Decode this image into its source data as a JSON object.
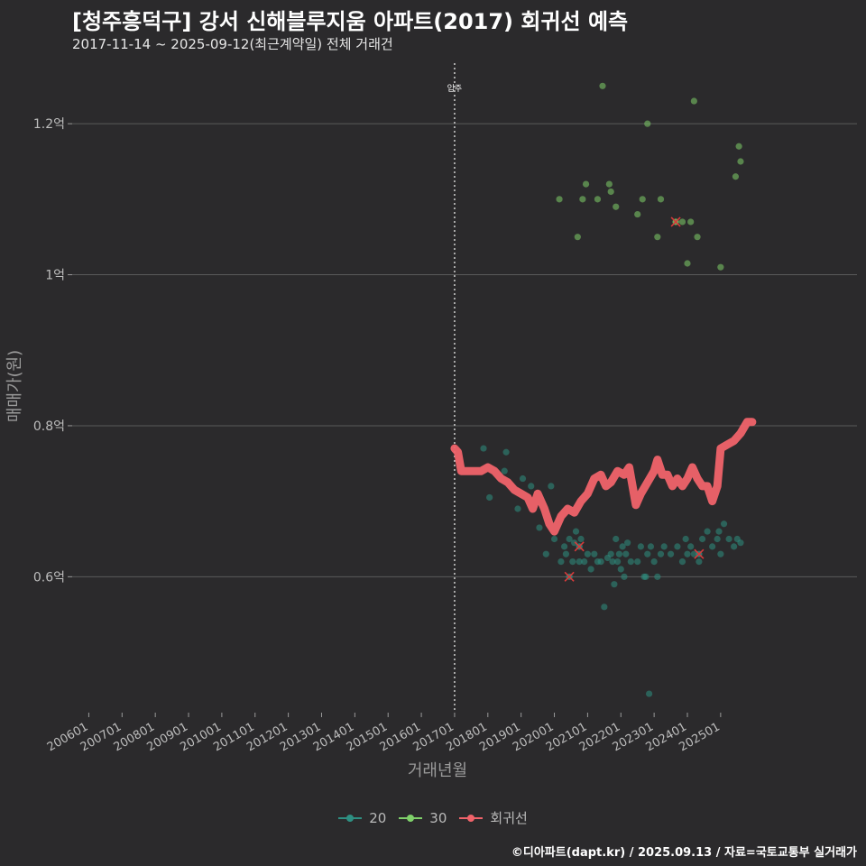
{
  "header": {
    "title": "[청주흥덕구] 강서 신해블루지움 아파트(2017) 회귀선 예측",
    "subtitle": "2017-11-14 ~ 2025-09-12(최근계약일) 전체 거래건"
  },
  "footer": {
    "caption": "©디아파트(dapt.kr) / 2025.09.13 / 자료=국토교통부 실거래가"
  },
  "colors": {
    "background": "#2b2a2c",
    "grid": "#5a5a5a",
    "series_20": "#2e8f82",
    "series_30": "#7fd06a",
    "regression": "#f0636a",
    "vline": "#cfcfcf"
  },
  "chart_data": {
    "type": "scatter",
    "title": "[청주흥덕구] 강서 신해블루지움 아파트(2017) 회귀선 예측",
    "xlabel": "거래년월",
    "ylabel": "매매가(원)",
    "xlim": [
      2005.5,
      2029.1
    ],
    "ylim": [
      0.42,
      1.285
    ],
    "y_unit": "억",
    "x_ticks": [
      {
        "value": 2006.0,
        "label": "200601"
      },
      {
        "value": 2007.0,
        "label": "200701"
      },
      {
        "value": 2008.0,
        "label": "200801"
      },
      {
        "value": 2009.0,
        "label": "200901"
      },
      {
        "value": 2010.0,
        "label": "201001"
      },
      {
        "value": 2011.0,
        "label": "201101"
      },
      {
        "value": 2012.0,
        "label": "201201"
      },
      {
        "value": 2013.0,
        "label": "201301"
      },
      {
        "value": 2014.0,
        "label": "201401"
      },
      {
        "value": 2015.0,
        "label": "201501"
      },
      {
        "value": 2016.0,
        "label": "201601"
      },
      {
        "value": 2017.0,
        "label": "201701"
      },
      {
        "value": 2018.0,
        "label": "201801"
      },
      {
        "value": 2019.0,
        "label": "201901"
      },
      {
        "value": 2020.0,
        "label": "202001"
      },
      {
        "value": 2021.0,
        "label": "202101"
      },
      {
        "value": 2022.0,
        "label": "202201"
      },
      {
        "value": 2023.0,
        "label": "202301"
      },
      {
        "value": 2024.0,
        "label": "202401"
      },
      {
        "value": 2025.0,
        "label": "202501"
      }
    ],
    "y_ticks": [
      {
        "value": 0.6,
        "label": "0.6억"
      },
      {
        "value": 0.8,
        "label": "0.8억"
      },
      {
        "value": 1.0,
        "label": "1억"
      },
      {
        "value": 1.2,
        "label": "1.2억"
      }
    ],
    "vline": {
      "x": 2017.0,
      "label": "입주"
    },
    "legend": [
      {
        "key": "20",
        "label": "20"
      },
      {
        "key": "30",
        "label": "30"
      },
      {
        "key": "regression",
        "label": "회귀선"
      }
    ],
    "series": [
      {
        "name": "20",
        "points": [
          [
            2017.87,
            0.77
          ],
          [
            2018.05,
            0.705
          ],
          [
            2018.5,
            0.74
          ],
          [
            2018.55,
            0.765
          ],
          [
            2018.9,
            0.69
          ],
          [
            2019.05,
            0.73
          ],
          [
            2019.3,
            0.72
          ],
          [
            2019.55,
            0.665
          ],
          [
            2019.75,
            0.63
          ],
          [
            2019.9,
            0.72
          ],
          [
            2020.0,
            0.65
          ],
          [
            2020.2,
            0.62
          ],
          [
            2020.3,
            0.64
          ],
          [
            2020.35,
            0.63
          ],
          [
            2020.45,
            0.65
          ],
          [
            2020.55,
            0.62
          ],
          [
            2020.6,
            0.645
          ],
          [
            2020.65,
            0.66
          ],
          [
            2020.75,
            0.62
          ],
          [
            2020.8,
            0.65
          ],
          [
            2020.9,
            0.62
          ],
          [
            2021.0,
            0.63
          ],
          [
            2021.1,
            0.61
          ],
          [
            2021.2,
            0.63
          ],
          [
            2021.3,
            0.62
          ],
          [
            2021.4,
            0.62
          ],
          [
            2021.5,
            0.56
          ],
          [
            2021.6,
            0.625
          ],
          [
            2021.7,
            0.63
          ],
          [
            2021.75,
            0.62
          ],
          [
            2021.8,
            0.59
          ],
          [
            2021.85,
            0.65
          ],
          [
            2021.9,
            0.62
          ],
          [
            2021.95,
            0.63
          ],
          [
            2022.0,
            0.61
          ],
          [
            2022.05,
            0.64
          ],
          [
            2022.1,
            0.6
          ],
          [
            2022.15,
            0.63
          ],
          [
            2022.2,
            0.645
          ],
          [
            2022.3,
            0.62
          ],
          [
            2022.5,
            0.62
          ],
          [
            2022.6,
            0.64
          ],
          [
            2022.7,
            0.6
          ],
          [
            2022.75,
            0.6
          ],
          [
            2022.8,
            0.63
          ],
          [
            2022.85,
            0.445
          ],
          [
            2022.9,
            0.64
          ],
          [
            2023.0,
            0.62
          ],
          [
            2023.1,
            0.6
          ],
          [
            2023.2,
            0.63
          ],
          [
            2023.3,
            0.64
          ],
          [
            2023.5,
            0.63
          ],
          [
            2023.7,
            0.64
          ],
          [
            2023.85,
            0.62
          ],
          [
            2023.95,
            0.65
          ],
          [
            2024.0,
            0.63
          ],
          [
            2024.1,
            0.64
          ],
          [
            2024.2,
            0.63
          ],
          [
            2024.35,
            0.62
          ],
          [
            2024.45,
            0.65
          ],
          [
            2024.6,
            0.66
          ],
          [
            2024.75,
            0.64
          ],
          [
            2024.9,
            0.65
          ],
          [
            2024.95,
            0.66
          ],
          [
            2025.0,
            0.63
          ],
          [
            2025.1,
            0.67
          ],
          [
            2025.25,
            0.65
          ],
          [
            2025.4,
            0.64
          ],
          [
            2025.5,
            0.65
          ],
          [
            2025.6,
            0.645
          ]
        ]
      },
      {
        "name": "30",
        "points": [
          [
            2020.15,
            1.1
          ],
          [
            2020.7,
            1.05
          ],
          [
            2020.85,
            1.1
          ],
          [
            2020.95,
            1.12
          ],
          [
            2021.3,
            1.1
          ],
          [
            2021.45,
            1.25
          ],
          [
            2021.65,
            1.12
          ],
          [
            2021.7,
            1.11
          ],
          [
            2021.85,
            1.09
          ],
          [
            2022.5,
            1.08
          ],
          [
            2022.65,
            1.1
          ],
          [
            2022.8,
            1.2
          ],
          [
            2023.1,
            1.05
          ],
          [
            2023.2,
            1.1
          ],
          [
            2023.85,
            1.07
          ],
          [
            2024.0,
            1.015
          ],
          [
            2024.1,
            1.07
          ],
          [
            2024.2,
            1.23
          ],
          [
            2024.3,
            1.05
          ],
          [
            2025.0,
            1.01
          ],
          [
            2025.45,
            1.13
          ],
          [
            2025.55,
            1.17
          ],
          [
            2025.6,
            1.15
          ]
        ]
      },
      {
        "name": "regression",
        "points": [
          [
            2017.0,
            0.77
          ],
          [
            2017.1,
            0.765
          ],
          [
            2017.2,
            0.74
          ],
          [
            2017.4,
            0.74
          ],
          [
            2017.6,
            0.74
          ],
          [
            2017.8,
            0.74
          ],
          [
            2018.0,
            0.745
          ],
          [
            2018.2,
            0.74
          ],
          [
            2018.4,
            0.73
          ],
          [
            2018.6,
            0.725
          ],
          [
            2018.8,
            0.715
          ],
          [
            2019.0,
            0.71
          ],
          [
            2019.2,
            0.705
          ],
          [
            2019.35,
            0.69
          ],
          [
            2019.5,
            0.71
          ],
          [
            2019.7,
            0.69
          ],
          [
            2019.85,
            0.67
          ],
          [
            2020.0,
            0.66
          ],
          [
            2020.2,
            0.68
          ],
          [
            2020.4,
            0.69
          ],
          [
            2020.6,
            0.685
          ],
          [
            2020.8,
            0.7
          ],
          [
            2021.0,
            0.71
          ],
          [
            2021.2,
            0.73
          ],
          [
            2021.4,
            0.735
          ],
          [
            2021.55,
            0.72
          ],
          [
            2021.7,
            0.725
          ],
          [
            2021.9,
            0.74
          ],
          [
            2022.1,
            0.735
          ],
          [
            2022.25,
            0.745
          ],
          [
            2022.35,
            0.72
          ],
          [
            2022.45,
            0.695
          ],
          [
            2022.6,
            0.71
          ],
          [
            2022.8,
            0.725
          ],
          [
            2023.0,
            0.74
          ],
          [
            2023.1,
            0.755
          ],
          [
            2023.25,
            0.735
          ],
          [
            2023.4,
            0.735
          ],
          [
            2023.55,
            0.72
          ],
          [
            2023.7,
            0.73
          ],
          [
            2023.85,
            0.72
          ],
          [
            2024.0,
            0.73
          ],
          [
            2024.15,
            0.745
          ],
          [
            2024.3,
            0.73
          ],
          [
            2024.45,
            0.72
          ],
          [
            2024.6,
            0.72
          ],
          [
            2024.75,
            0.7
          ],
          [
            2024.9,
            0.72
          ],
          [
            2025.0,
            0.77
          ],
          [
            2025.2,
            0.775
          ],
          [
            2025.4,
            0.78
          ],
          [
            2025.6,
            0.79
          ],
          [
            2025.8,
            0.805
          ],
          [
            2025.95,
            0.805
          ]
        ]
      }
    ],
    "highlighted": [
      {
        "series": "20",
        "x": 2020.45,
        "y": 0.6
      },
      {
        "series": "20",
        "x": 2020.75,
        "y": 0.64
      },
      {
        "series": "20",
        "x": 2024.35,
        "y": 0.63
      },
      {
        "series": "30",
        "x": 2023.65,
        "y": 1.07
      }
    ]
  }
}
